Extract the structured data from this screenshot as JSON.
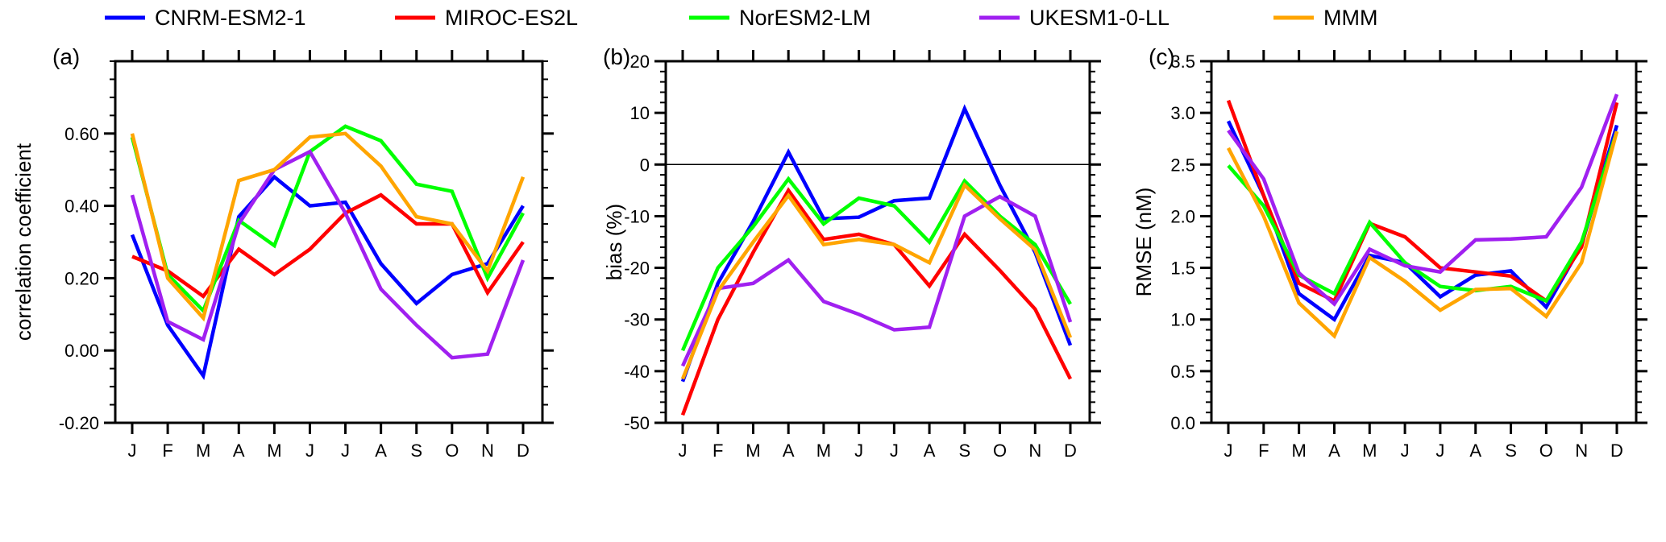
{
  "legend": [
    {
      "name": "CNRM-ESM2-1",
      "color": "#0000ff"
    },
    {
      "name": "MIROC-ES2L",
      "color": "#ff0000"
    },
    {
      "name": "NorESM2-LM",
      "color": "#00ff00"
    },
    {
      "name": "UKESM1-0-LL",
      "color": "#a020f0"
    },
    {
      "name": "MMM",
      "color": "#ffa500"
    }
  ],
  "chart_data": [
    {
      "type": "line",
      "panel": "(a)",
      "ylabel": "correlation coefficient",
      "xlabel": "",
      "categories": [
        "J",
        "F",
        "M",
        "A",
        "M",
        "J",
        "J",
        "A",
        "S",
        "O",
        "N",
        "D"
      ],
      "ylim": [
        -0.2,
        0.8
      ],
      "yticks": [
        -0.2,
        0,
        0.2,
        0.4,
        0.6
      ],
      "ytick_labels": [
        "-0.20",
        "0.00",
        "0.20",
        "0.40",
        "0.60"
      ],
      "minor_step": 0.05,
      "zero_line": false,
      "series": [
        {
          "name": "CNRM-ESM2-1",
          "values": [
            0.32,
            0.07,
            -0.07,
            0.37,
            0.48,
            0.4,
            0.41,
            0.24,
            0.13,
            0.21,
            0.24,
            0.4
          ]
        },
        {
          "name": "MIROC-ES2L",
          "values": [
            0.26,
            0.22,
            0.15,
            0.28,
            0.21,
            0.28,
            0.38,
            0.43,
            0.35,
            0.35,
            0.16,
            0.3
          ]
        },
        {
          "name": "NorESM2-LM",
          "values": [
            0.59,
            0.21,
            0.11,
            0.36,
            0.29,
            0.55,
            0.62,
            0.58,
            0.46,
            0.44,
            0.2,
            0.38
          ]
        },
        {
          "name": "UKESM1-0-LL",
          "values": [
            0.43,
            0.08,
            0.03,
            0.35,
            0.5,
            0.55,
            0.38,
            0.17,
            0.07,
            -0.02,
            -0.01,
            0.25
          ]
        },
        {
          "name": "MMM",
          "values": [
            0.6,
            0.2,
            0.09,
            0.47,
            0.5,
            0.59,
            0.6,
            0.51,
            0.37,
            0.35,
            0.22,
            0.48
          ]
        }
      ]
    },
    {
      "type": "line",
      "panel": "(b)",
      "ylabel": "bias (%)",
      "xlabel": "",
      "categories": [
        "J",
        "F",
        "M",
        "A",
        "M",
        "J",
        "J",
        "A",
        "S",
        "O",
        "N",
        "D"
      ],
      "ylim": [
        -50,
        20
      ],
      "yticks": [
        -50,
        -40,
        -30,
        -20,
        -10,
        0,
        10,
        20
      ],
      "ytick_labels": [
        "-50",
        "-40",
        "-30",
        "-20",
        "-10",
        "0",
        "10",
        "20"
      ],
      "minor_step": 2,
      "zero_line": true,
      "series": [
        {
          "name": "CNRM-ESM2-1",
          "values": [
            -42,
            -23,
            -11,
            2.4,
            -10.5,
            -10.2,
            -7,
            -6.5,
            10.8,
            -4,
            -17,
            -35
          ]
        },
        {
          "name": "MIROC-ES2L",
          "values": [
            -48.5,
            -30,
            -17,
            -5,
            -14.5,
            -13.5,
            -15.5,
            -23.5,
            -13.5,
            -20.5,
            -28,
            -41.5
          ]
        },
        {
          "name": "NorESM2-LM",
          "values": [
            -36,
            -20,
            -12,
            -2.8,
            -11.5,
            -6.5,
            -8,
            -15,
            -3.2,
            -10,
            -15.5,
            -27
          ]
        },
        {
          "name": "UKESM1-0-LL",
          "values": [
            -39,
            -24,
            -23,
            -18.5,
            -26.5,
            -29,
            -32,
            -31.5,
            -10,
            -6.2,
            -10,
            -30.5
          ]
        },
        {
          "name": "MMM",
          "values": [
            -41.5,
            -24.5,
            -15,
            -6,
            -15.5,
            -14.5,
            -15.5,
            -19,
            -4,
            -10.5,
            -16.5,
            -33.5
          ]
        }
      ]
    },
    {
      "type": "line",
      "panel": "(c)",
      "ylabel": "RMSE (nM)",
      "xlabel": "",
      "categories": [
        "J",
        "F",
        "M",
        "A",
        "M",
        "J",
        "J",
        "A",
        "S",
        "O",
        "N",
        "D"
      ],
      "ylim": [
        0,
        3.5
      ],
      "yticks": [
        0,
        0.5,
        1,
        1.5,
        2,
        2.5,
        3,
        3.5
      ],
      "ytick_labels": [
        "0.0",
        "0.5",
        "1.0",
        "1.5",
        "2.0",
        "2.5",
        "3.0",
        "3.5"
      ],
      "minor_step": 0.1,
      "zero_line": false,
      "series": [
        {
          "name": "CNRM-ESM2-1",
          "values": [
            2.92,
            2.2,
            1.25,
            1.0,
            1.62,
            1.55,
            1.22,
            1.43,
            1.47,
            1.12,
            1.72,
            2.88
          ]
        },
        {
          "name": "MIROC-ES2L",
          "values": [
            3.12,
            2.2,
            1.35,
            1.18,
            1.93,
            1.8,
            1.5,
            1.46,
            1.42,
            1.18,
            1.7,
            3.1
          ]
        },
        {
          "name": "NorESM2-LM",
          "values": [
            2.49,
            2.1,
            1.43,
            1.25,
            1.94,
            1.55,
            1.32,
            1.28,
            1.32,
            1.18,
            1.75,
            2.82
          ]
        },
        {
          "name": "UKESM1-0-LL",
          "values": [
            2.83,
            2.36,
            1.45,
            1.15,
            1.68,
            1.52,
            1.46,
            1.77,
            1.78,
            1.8,
            2.28,
            3.18
          ]
        },
        {
          "name": "MMM",
          "values": [
            2.66,
            2.0,
            1.16,
            0.84,
            1.6,
            1.37,
            1.09,
            1.29,
            1.3,
            1.03,
            1.55,
            2.82
          ]
        }
      ]
    }
  ]
}
